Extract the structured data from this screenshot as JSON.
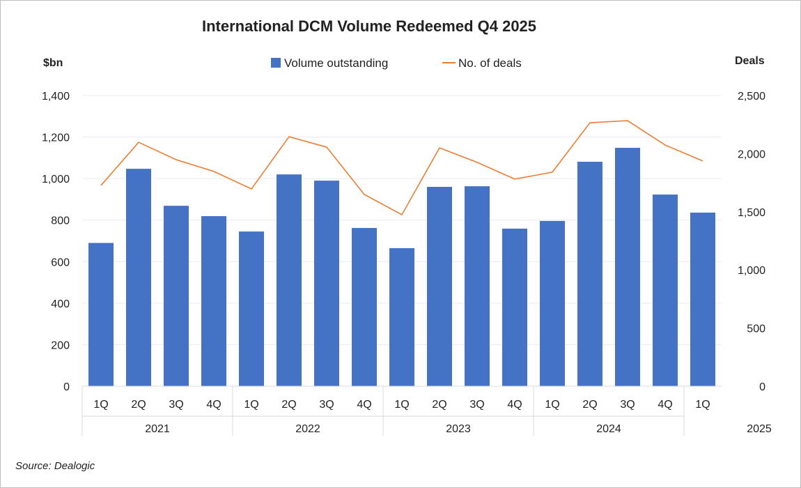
{
  "chart_data": {
    "type": "bar+line",
    "title": "International DCM Volume Redeemed Q4 2025",
    "ylabel_left": "$bn",
    "ylabel_right": "Deals",
    "categories": [
      "1Q",
      "2Q",
      "3Q",
      "4Q",
      "1Q",
      "2Q",
      "3Q",
      "4Q",
      "1Q",
      "2Q",
      "3Q",
      "4Q",
      "1Q",
      "2Q",
      "3Q",
      "4Q",
      "1Q"
    ],
    "year_groups": [
      {
        "label": "2021",
        "count": 4
      },
      {
        "label": "2022",
        "count": 4
      },
      {
        "label": "2023",
        "count": 4
      },
      {
        "label": "2024",
        "count": 4
      },
      {
        "label": "2025",
        "count": 1
      }
    ],
    "series": [
      {
        "name": "Volume outstanding",
        "type": "bar",
        "axis": "left",
        "color": "#4472C4",
        "values": [
          690,
          1047,
          869,
          819,
          745,
          1020,
          990,
          762,
          665,
          960,
          963,
          759,
          796,
          1081,
          1148,
          923,
          836
        ]
      },
      {
        "name": "No. of deals",
        "type": "line",
        "axis": "right",
        "color": "#ED7D31",
        "values": [
          1727,
          2098,
          1948,
          1847,
          1697,
          2146,
          2056,
          1649,
          1475,
          2050,
          1925,
          1781,
          1841,
          2266,
          2284,
          2074,
          1937
        ]
      }
    ],
    "left_axis": {
      "min": 0,
      "max": 1400,
      "ticks": [
        "0",
        "200",
        "400",
        "600",
        "800",
        "1,000",
        "1,200",
        "1,400"
      ]
    },
    "right_axis": {
      "min": 0,
      "max": 2500,
      "ticks": [
        "0",
        "500",
        "1,000",
        "1,500",
        "2,000",
        "2,500"
      ]
    },
    "legend_position": "top-center",
    "grid": true
  },
  "source": "Source: Dealogic"
}
